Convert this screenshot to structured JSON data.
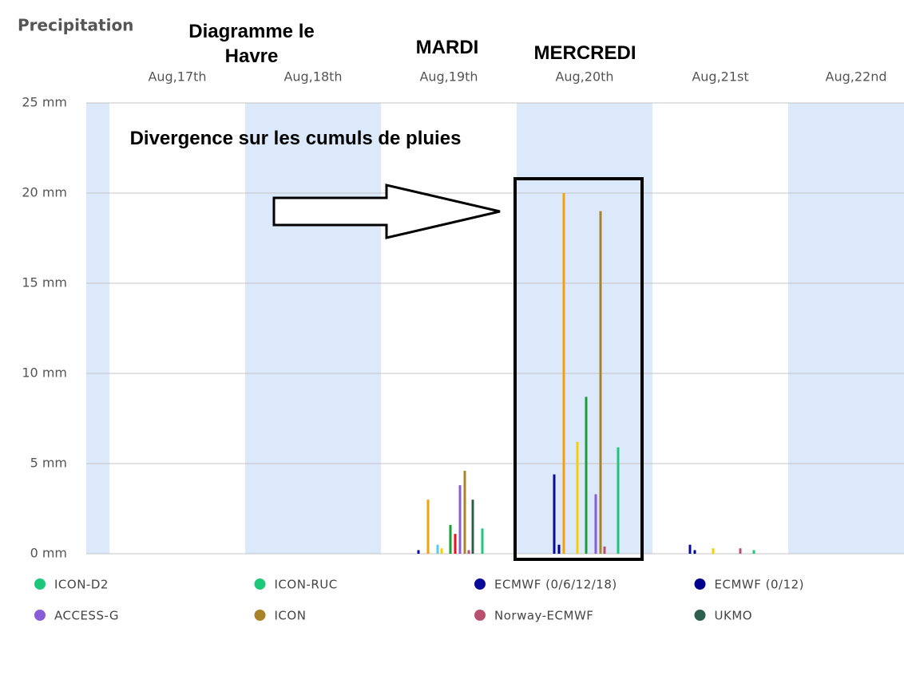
{
  "chart_data": {
    "type": "bar",
    "title": "Precipitation",
    "annotations": [
      "Diagramme le Havre",
      "MARDI",
      "MERCREDI",
      "Divergence sur les cumuls de pluies"
    ],
    "categories": [
      "Aug,17th",
      "Aug,18th",
      "Aug,19th",
      "Aug,20th",
      "Aug,21st",
      "Aug,22nd"
    ],
    "ylim": [
      0,
      25
    ],
    "yticks": [
      {
        "value": 0,
        "label": "0 mm"
      },
      {
        "value": 5,
        "label": "5 mm"
      },
      {
        "value": 10,
        "label": "10 mm"
      },
      {
        "value": 15,
        "label": "15 mm"
      },
      {
        "value": 20,
        "label": "20 mm"
      },
      {
        "value": 25,
        "label": "25 mm"
      }
    ],
    "grid": true,
    "series": [
      {
        "name": "ICON-D2",
        "color": "#1dc87a",
        "values": [
          0,
          0,
          0,
          0,
          0,
          0
        ]
      },
      {
        "name": "ICON-RUC",
        "color": "#1dc87a",
        "values": [
          0,
          0,
          1.4,
          5.9,
          0.2,
          0
        ]
      },
      {
        "name": "ECMWF (0/6/12/18)",
        "color": "#0a0a9a",
        "values": [
          0,
          0,
          0.2,
          4.4,
          0.5,
          0
        ]
      },
      {
        "name": "ECMWF (0/12)",
        "color": "#00008b",
        "values": [
          0,
          0,
          0,
          0.5,
          0.2,
          0
        ]
      },
      {
        "name": "ACCESS-G",
        "color": "#8a5cd6",
        "values": [
          0,
          0,
          3.8,
          3.3,
          0,
          0
        ]
      },
      {
        "name": "ICON",
        "color": "#a8832a",
        "values": [
          0,
          0,
          4.6,
          19,
          0,
          0
        ]
      },
      {
        "name": "Norway-ECMWF",
        "color": "#b85070",
        "values": [
          0,
          0,
          0.2,
          0.4,
          0.3,
          0
        ]
      },
      {
        "name": "UKMO",
        "color": "#2e5e4e",
        "values": [
          0,
          0,
          3.0,
          0,
          0,
          0
        ]
      },
      {
        "color": "#f0a30a",
        "values": [
          0,
          0,
          3.0,
          20,
          0,
          0
        ]
      },
      {
        "color": "#5bc8f5",
        "values": [
          0,
          0,
          0.5,
          0,
          0,
          0
        ]
      },
      {
        "color": "#f5d000",
        "values": [
          0,
          0,
          0.3,
          6.2,
          0.3,
          0
        ]
      },
      {
        "color": "#1a9e3a",
        "values": [
          0,
          0,
          1.6,
          8.7,
          0,
          0
        ]
      },
      {
        "color": "#e8101a",
        "values": [
          0,
          0,
          1.1,
          0,
          0,
          0
        ]
      }
    ]
  }
}
